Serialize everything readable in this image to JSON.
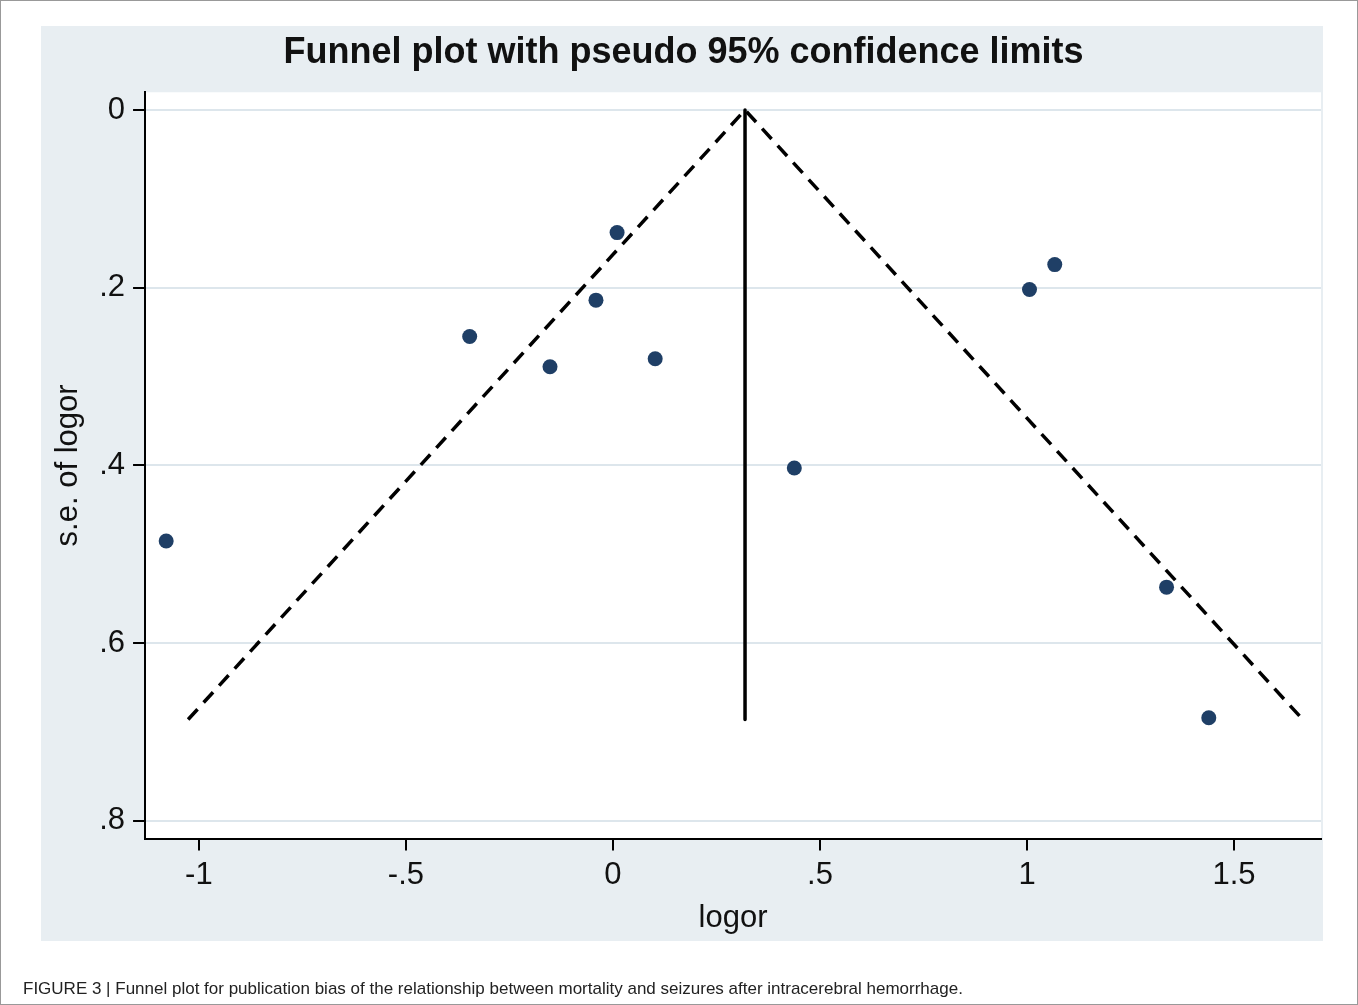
{
  "chart_data": {
    "type": "scatter",
    "title": "Funnel plot with pseudo 95% confidence limits",
    "xlabel": "logor",
    "ylabel": "s.e. of logor",
    "annotations": [
      "FIGURE 3 | Funnel plot for publication bias of the relationship between mortality and seizures after intracerebral hemorrhage."
    ],
    "xlim": [
      -1.13,
      1.71
    ],
    "xticks": [
      -1,
      {
        "value": -0.5,
        "label": "-.5"
      },
      0,
      {
        "value": 0.5,
        "label": ".5"
      },
      1,
      1.5
    ],
    "ylim": [
      0.82,
      -0.02
    ],
    "yticks": [
      0,
      {
        "value": 0.2,
        "label": ".2"
      },
      {
        "value": 0.4,
        "label": ".4"
      },
      {
        "value": 0.6,
        "label": ".6"
      },
      {
        "value": 0.8,
        "label": ".8"
      }
    ],
    "grid": "y",
    "legend": false,
    "series": [
      {
        "type": "line",
        "color": "#000000",
        "line_style": "dashed",
        "marker": "none",
        "x": [
          -1.026,
          0.319,
          1.666
        ],
        "values": [
          0.686,
          0,
          0.686
        ]
      },
      {
        "type": "line",
        "color": "#000000",
        "line_style": "solid",
        "marker": "none",
        "x": [
          0.319,
          0.319
        ],
        "values": [
          0,
          0.686
        ]
      },
      {
        "color": "#1f3f66",
        "marker": "circle",
        "x": [
          -1.079,
          -0.346,
          -0.152,
          -0.041,
          0.01,
          0.102,
          0.438,
          1.006,
          1.067,
          1.337,
          1.439
        ],
        "values": [
          0.485,
          0.255,
          0.289,
          0.214,
          0.138,
          0.28,
          0.403,
          0.202,
          0.174,
          0.537,
          0.684
        ]
      }
    ]
  }
}
